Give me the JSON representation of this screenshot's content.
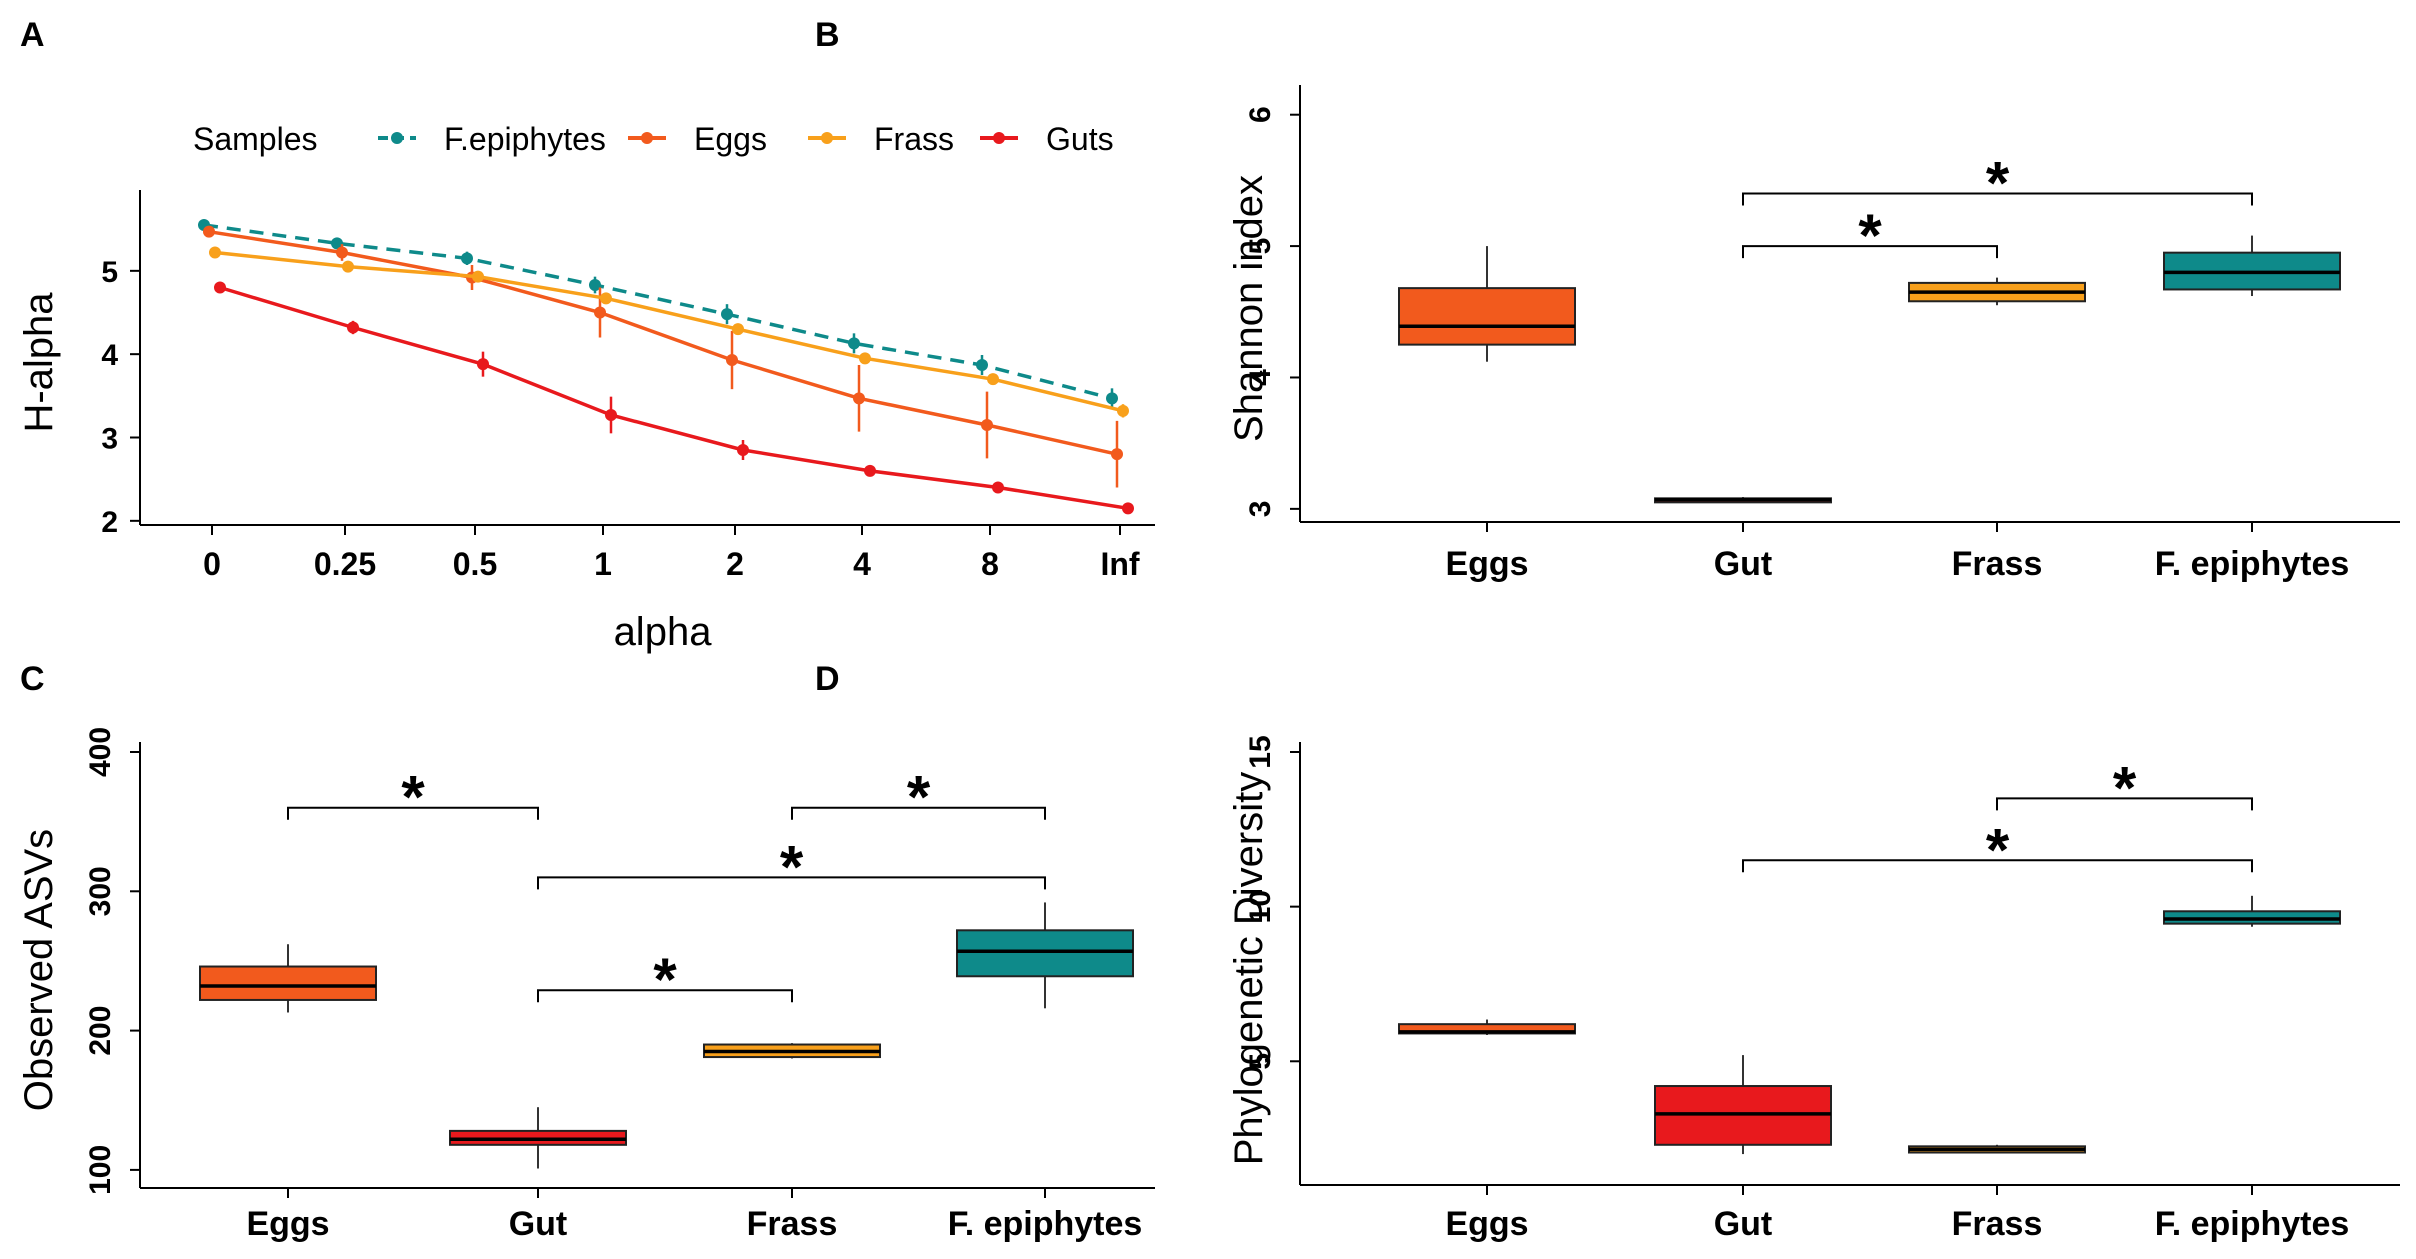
{
  "chart_data": [
    {
      "panel": "A",
      "type": "line",
      "xlabel": "alpha",
      "ylabel": "H-alpha",
      "legend_title": "Samples",
      "legend_position": "top",
      "categories": [
        "0",
        "0.25",
        "0.5",
        "1",
        "2",
        "4",
        "8",
        "Inf"
      ],
      "yticks": [
        2,
        3,
        4,
        5
      ],
      "ylim": [
        1.95,
        5.85
      ],
      "series": [
        {
          "name": "F.epiphytes",
          "color": "#0e8a8a",
          "dashed": true,
          "values": [
            5.55,
            5.33,
            5.15,
            4.83,
            4.48,
            4.13,
            3.87,
            3.47
          ],
          "errors": [
            0.05,
            0.05,
            0.08,
            0.1,
            0.12,
            0.12,
            0.12,
            0.12
          ]
        },
        {
          "name": "Eggs",
          "color": "#f25a1d",
          "dashed": false,
          "values": [
            5.47,
            5.22,
            4.92,
            4.5,
            3.93,
            3.47,
            3.15,
            2.8
          ],
          "errors": [
            0.05,
            0.1,
            0.15,
            0.3,
            0.35,
            0.4,
            0.4,
            0.4
          ]
        },
        {
          "name": "Frass",
          "color": "#f8a01b",
          "dashed": false,
          "values": [
            5.22,
            5.05,
            4.93,
            4.67,
            4.3,
            3.95,
            3.7,
            3.32
          ],
          "errors": [
            0.03,
            0.03,
            0.05,
            0.05,
            0.05,
            0.05,
            0.05,
            0.08
          ]
        },
        {
          "name": "Guts",
          "color": "#e8191d",
          "dashed": false,
          "values": [
            4.8,
            4.32,
            3.88,
            3.27,
            2.85,
            2.6,
            2.4,
            2.15
          ],
          "errors": [
            0.05,
            0.08,
            0.15,
            0.22,
            0.12,
            0.05,
            0.03,
            0.02
          ]
        }
      ]
    },
    {
      "panel": "B",
      "type": "box",
      "ylabel": "Shannon index",
      "categories": [
        "Eggs",
        "Gut",
        "Frass",
        "F. epiphytes"
      ],
      "yticks": [
        3,
        4,
        5,
        6
      ],
      "ylim": [
        2.9,
        6.15
      ],
      "boxes": [
        {
          "min": 4.12,
          "q1": 4.25,
          "median": 4.39,
          "q3": 4.68,
          "max": 5.0,
          "color": "#f25a1d"
        },
        {
          "min": 3.06,
          "q1": 3.06,
          "median": 3.07,
          "q3": 3.08,
          "max": 3.09,
          "color": "#e8191d"
        },
        {
          "min": 4.55,
          "q1": 4.58,
          "median": 4.65,
          "q3": 4.72,
          "max": 4.76,
          "color": "#f8a01b"
        },
        {
          "min": 4.62,
          "q1": 4.67,
          "median": 4.8,
          "q3": 4.95,
          "max": 5.08,
          "color": "#0e8a8a"
        }
      ],
      "significance": [
        {
          "from": 1,
          "to": 2,
          "y": 5.0,
          "label": "*"
        },
        {
          "from": 1,
          "to": 3,
          "y": 5.4,
          "label": "*"
        }
      ]
    },
    {
      "panel": "C",
      "type": "box",
      "ylabel": "Observed ASVs",
      "categories": [
        "Eggs",
        "Gut",
        "Frass",
        "F. epiphytes"
      ],
      "yticks": [
        100,
        200,
        300,
        400
      ],
      "ylim": [
        87,
        400
      ],
      "boxes": [
        {
          "min": 213,
          "q1": 222,
          "median": 232,
          "q3": 246,
          "max": 262,
          "color": "#f25a1d"
        },
        {
          "min": 101,
          "q1": 118,
          "median": 122,
          "q3": 128,
          "max": 145,
          "color": "#e8191d"
        },
        {
          "min": 180,
          "q1": 181,
          "median": 185,
          "q3": 190,
          "max": 191,
          "color": "#f8a01b"
        },
        {
          "min": 216,
          "q1": 239,
          "median": 257,
          "q3": 272,
          "max": 292,
          "color": "#0e8a8a"
        }
      ],
      "significance": [
        {
          "from": 0,
          "to": 1,
          "y": 360,
          "label": "*"
        },
        {
          "from": 2,
          "to": 3,
          "y": 360,
          "label": "*"
        },
        {
          "from": 1,
          "to": 3,
          "y": 310,
          "label": "*"
        },
        {
          "from": 1,
          "to": 2,
          "y": 229,
          "label": "*"
        }
      ]
    },
    {
      "panel": "D",
      "type": "box",
      "ylabel": "Phylogenetic Diversity",
      "categories": [
        "Eggs",
        "Gut",
        "Frass",
        "F. epiphytes"
      ],
      "yticks": [
        5,
        10,
        15
      ],
      "ylim": [
        1.0,
        15.0
      ],
      "boxes": [
        {
          "min": 5.85,
          "q1": 5.9,
          "median": 5.95,
          "q3": 6.2,
          "max": 6.35,
          "color": "#f25a1d"
        },
        {
          "min": 2.0,
          "q1": 2.3,
          "median": 3.3,
          "q3": 4.2,
          "max": 5.2,
          "color": "#e8191d"
        },
        {
          "min": 2.05,
          "q1": 2.05,
          "median": 2.15,
          "q3": 2.25,
          "max": 2.3,
          "color": "#f8a01b"
        },
        {
          "min": 9.35,
          "q1": 9.45,
          "median": 9.6,
          "q3": 9.85,
          "max": 10.35,
          "color": "#0e8a8a"
        }
      ],
      "significance": [
        {
          "from": 2,
          "to": 3,
          "y": 13.5,
          "label": "*"
        },
        {
          "from": 1,
          "to": 3,
          "y": 11.5,
          "label": "*"
        }
      ]
    }
  ]
}
